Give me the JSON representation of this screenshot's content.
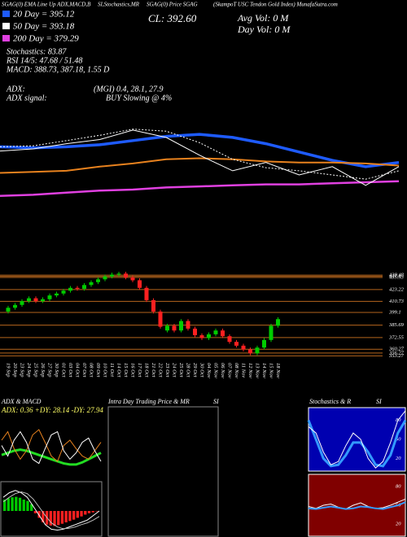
{
  "header": {
    "lines": [
      "SGAG(0) EMA Line Up ADX,MACD,B",
      "SI,Stochastics,MR",
      "SGAG(0) Price SGAG",
      "(SkampoT USC Tendon Gold Index) MunafaSutra.com",
      "20 Day = 395.12",
      "CL: 392.60",
      "Avg Vol: 0  M",
      "50 Day = 393.18",
      "Day Vol: 0  M",
      "200 Day = 379.29",
      "Stochastics: 83.87",
      "RSI 14/5: 47.68 / 51.48",
      "MACD: 388.73, 387.18, 1.55 D",
      "ADX:",
      "(MGI) 0.4, 28.1, 27.9",
      "ADX  signal:",
      "BUY Slowing @ 4%"
    ]
  },
  "intraday_panel": {
    "title": "Intra Day Trading Price & MR",
    "subtitle": "SI"
  },
  "chart_data": [
    {
      "type": "line",
      "ylim": [
        300,
        460
      ],
      "series": [
        {
          "color": "#1e5bff",
          "width": 3.5,
          "values": [
            366,
            365,
            366,
            368,
            372,
            376,
            378,
            375,
            369,
            361,
            353,
            347,
            351
          ]
        },
        {
          "color": "#e8821e",
          "width": 2,
          "values": [
            341,
            342,
            343,
            347,
            350,
            354,
            355,
            354,
            352,
            351,
            351,
            350,
            348
          ]
        },
        {
          "color": "#e040e0",
          "width": 2.5,
          "values": [
            319,
            320,
            322,
            324,
            325,
            327,
            328,
            329,
            330,
            330,
            331,
            332,
            333
          ]
        },
        {
          "color": "#ffffff",
          "width": 1,
          "values": [
            362,
            364,
            369,
            373,
            382,
            375,
            358,
            343,
            351,
            339,
            347,
            329,
            347
          ]
        },
        {
          "color": "#ffffff",
          "width": 1,
          "dash": true,
          "values": [
            366,
            367,
            372,
            377,
            383,
            381,
            370,
            354,
            346,
            343,
            339,
            335,
            343
          ]
        }
      ]
    },
    {
      "type": "candlestick",
      "ylim": [
        351,
        454
      ],
      "grid": true,
      "up_color": "#00cc00",
      "down_color": "#ff2020",
      "yticks": [
        438.48,
        437.2,
        435.93,
        423.22,
        410.73,
        399.1,
        385.69,
        372.55,
        360.27,
        356.27,
        353.27
      ],
      "categories": [
        "19 Sep",
        "20 Sep",
        "23 Sep",
        "24 Sep",
        "25 Sep",
        "26 Sep",
        "27 Sep",
        "30 Sep",
        "01 Oct",
        "03 Oct",
        "04 Oct",
        "07 Oct",
        "08 Oct",
        "09 Oct",
        "10 Oct",
        "11 Oct",
        "14 Oct",
        "15 Oct",
        "16 Oct",
        "17 Oct",
        "18 Oct",
        "21 Oct",
        "22 Oct",
        "23 Oct",
        "24 Oct",
        "25 Oct",
        "28 Oct",
        "29 Oct",
        "30 Oct",
        "04 Nov",
        "05 Nov",
        "06 Nov",
        "07 Nov",
        "08 Nov",
        "11 Nov",
        "12 Nov",
        "13 Nov",
        "14 Nov",
        "15 Nov",
        "18 Nov"
      ],
      "open": [
        400,
        404,
        407,
        411,
        414,
        411,
        413,
        417,
        419,
        422,
        425,
        424,
        428,
        431,
        434,
        437,
        439,
        440,
        436,
        433,
        425,
        412,
        400,
        380,
        385,
        380,
        390,
        382,
        375,
        372,
        376,
        380,
        374,
        368,
        364,
        360,
        356,
        362,
        370,
        385
      ],
      "high": [
        406,
        409,
        413,
        416,
        416,
        415,
        419,
        421,
        424,
        427,
        427,
        430,
        433,
        436,
        439,
        441,
        442,
        442,
        438,
        435,
        427,
        414,
        402,
        387,
        387,
        392,
        392,
        384,
        377,
        378,
        382,
        382,
        376,
        370,
        366,
        362,
        364,
        372,
        387,
        394
      ],
      "low": [
        398,
        402,
        405,
        409,
        409,
        409,
        411,
        415,
        417,
        420,
        422,
        422,
        426,
        429,
        432,
        435,
        437,
        434,
        431,
        423,
        410,
        398,
        382,
        378,
        378,
        378,
        380,
        373,
        370,
        370,
        374,
        372,
        366,
        362,
        358,
        354,
        354,
        360,
        368,
        383
      ],
      "close": [
        404,
        407,
        411,
        414,
        411,
        413,
        417,
        419,
        422,
        425,
        424,
        428,
        431,
        434,
        437,
        439,
        440,
        436,
        433,
        425,
        412,
        400,
        384,
        385,
        380,
        390,
        382,
        375,
        372,
        376,
        380,
        374,
        368,
        364,
        360,
        356,
        362,
        370,
        385,
        392
      ]
    },
    {
      "type": "line",
      "title": "ADX & MACD",
      "annotation": "ADX: 0.36  +DY: 28.14  -DY: 27.94",
      "ylim": [
        0,
        50
      ],
      "series": [
        {
          "color": "#22dd22",
          "width": 3,
          "values": [
            16,
            18,
            20,
            21,
            20,
            18,
            16,
            14,
            12,
            10,
            8,
            7,
            7,
            9,
            12,
            15,
            18
          ]
        },
        {
          "color": "#e8821e",
          "width": 1,
          "values": [
            30,
            38,
            22,
            12,
            20,
            35,
            40,
            28,
            15,
            10,
            25,
            30,
            22,
            15,
            12,
            20,
            28
          ]
        },
        {
          "color": "#ffffff",
          "width": 1,
          "values": [
            25,
            15,
            30,
            38,
            28,
            12,
            8,
            22,
            35,
            38,
            20,
            12,
            18,
            28,
            32,
            20,
            10
          ]
        }
      ]
    },
    {
      "type": "bar",
      "ylim": [
        -5,
        5
      ],
      "up_color": "#00cc00",
      "down_color": "#ff2020",
      "values": [
        2.5,
        2.8,
        3,
        3.1,
        2.9,
        2.5,
        2.2,
        1.5,
        -0.5,
        -1.5,
        -2.5,
        -3,
        -3.2,
        -3.3,
        -3.1,
        -2.8,
        -2.5,
        -2.2,
        -1.9,
        -1.5,
        -1.2,
        -0.8,
        -0.5,
        -0.3,
        -0.1
      ],
      "series": [
        {
          "color": "#ffffff",
          "width": 1,
          "values": [
            3,
            4,
            4.5,
            4,
            3,
            1,
            -1,
            -3,
            -4,
            -4.2,
            -4,
            -3.5,
            -3,
            -2.5,
            -2,
            -1,
            0
          ]
        },
        {
          "color": "#bbbbbb",
          "width": 1,
          "values": [
            2,
            3,
            3.8,
            4.2,
            3.8,
            2.6,
            0.8,
            -1,
            -2.6,
            -3.5,
            -3.9,
            -3.8,
            -3.5,
            -3,
            -2.6,
            -2,
            -1.2
          ]
        }
      ]
    },
    {
      "type": "line",
      "title": "Stochastics & R",
      "subtitle": "SI",
      "background": "#0000b0",
      "ylim": [
        0,
        100
      ],
      "yticks": [
        20,
        50,
        80
      ],
      "series": [
        {
          "color": "#3399ff",
          "width": 3,
          "values": [
            80,
            50,
            20,
            8,
            10,
            25,
            45,
            45,
            30,
            10,
            8,
            25,
            60,
            80
          ]
        },
        {
          "color": "#ffffff",
          "width": 1,
          "values": [
            70,
            60,
            30,
            10,
            15,
            40,
            60,
            50,
            20,
            5,
            15,
            45,
            80,
            95
          ]
        }
      ]
    },
    {
      "type": "line",
      "background": "#800000",
      "ylim": [
        0,
        100
      ],
      "yticks": [
        20,
        50,
        80
      ],
      "series": [
        {
          "color": "#ffffff",
          "width": 1,
          "values": [
            48,
            45,
            50,
            52,
            47,
            44,
            50,
            54,
            48,
            45,
            46,
            50,
            55,
            60
          ]
        },
        {
          "color": "#3399ff",
          "width": 2,
          "values": [
            45,
            44,
            46,
            48,
            46,
            44,
            45,
            48,
            47,
            45,
            44,
            47,
            50,
            55
          ]
        }
      ]
    }
  ]
}
